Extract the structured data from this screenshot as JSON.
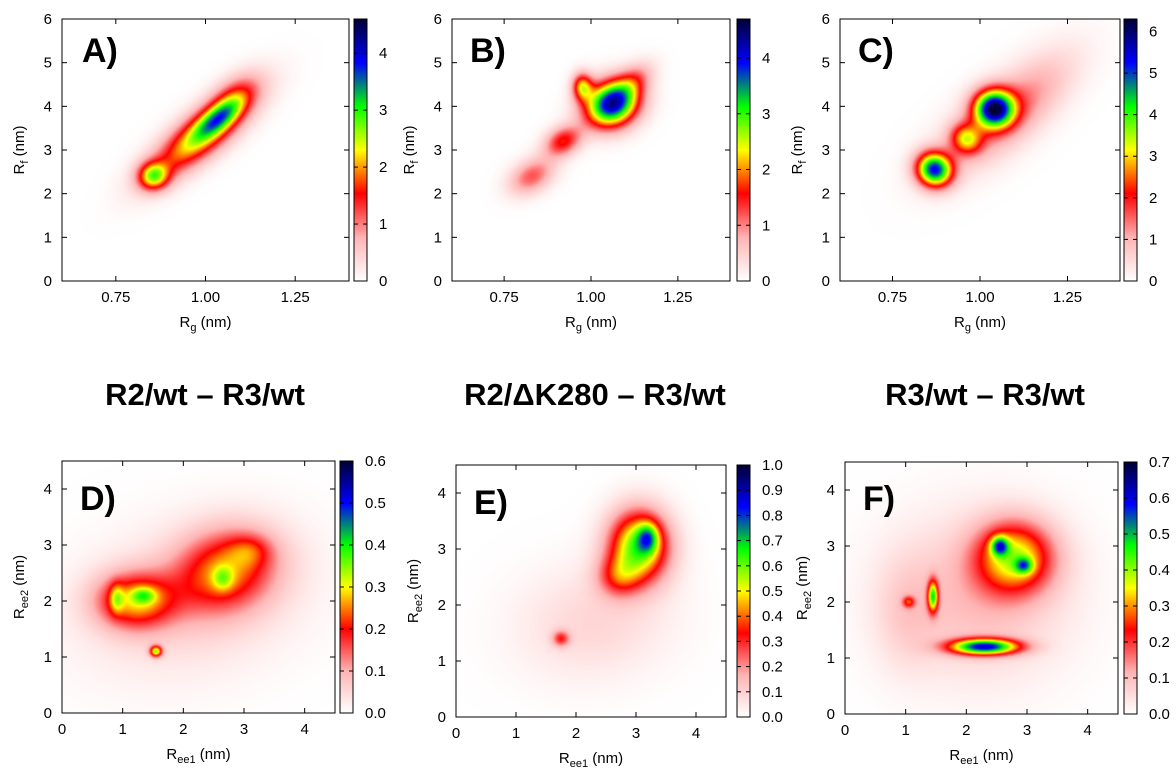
{
  "colorscale": [
    "#ffffff",
    "#ffb3b3",
    "#ff0000",
    "#ffff00",
    "#00ff00",
    "#0000ff",
    "#000033"
  ],
  "row_titles": [
    "R2/wt – R3/wt",
    "R2/ΔK280 – R3/wt",
    "R3/wt – R3/wt"
  ],
  "chart_data": [
    {
      "type": "heatmap",
      "panel": "A)",
      "xlabel": "R",
      "xlabel_sub": "g",
      "xlabel_unit": " (nm)",
      "ylabel": "R",
      "ylabel_sub": "f",
      "ylabel_unit": " (nm)",
      "xlim": [
        0.6,
        1.4
      ],
      "ylim": [
        0,
        6
      ],
      "xticks": [
        0.75,
        1.0,
        1.25
      ],
      "xtick_labels": [
        "0.75",
        "1.00",
        "1.25"
      ],
      "yticks": [
        0,
        1,
        2,
        3,
        4,
        5,
        6
      ],
      "ytick_labels": [
        "0",
        "1",
        "2",
        "3",
        "4",
        "5",
        "6"
      ],
      "colorbar_range": [
        0,
        4.6
      ],
      "colorbar_ticks": [
        0,
        1,
        2,
        3,
        4
      ],
      "colorbar_labels": [
        "0",
        "1",
        "2",
        "3",
        "4"
      ],
      "blobs": [
        {
          "x": 0.99,
          "y": 3.35,
          "sx": 0.125,
          "sy": 0.32,
          "rot": 0.74,
          "amp": 2.4
        },
        {
          "x": 1.04,
          "y": 3.75,
          "sx": 0.06,
          "sy": 0.18,
          "rot": 0.74,
          "amp": 1.6
        },
        {
          "x": 0.855,
          "y": 2.4,
          "sx": 0.03,
          "sy": 0.22,
          "rot": 0.5,
          "amp": 2.1
        },
        {
          "x": 1.08,
          "y": 4.3,
          "sx": 0.06,
          "sy": 0.25,
          "rot": 0.8,
          "amp": 0.7
        }
      ]
    },
    {
      "type": "heatmap",
      "panel": "B)",
      "xlabel": "R",
      "xlabel_sub": "g",
      "xlabel_unit": " (nm)",
      "ylabel": "R",
      "ylabel_sub": "f",
      "ylabel_unit": " (nm)",
      "xlim": [
        0.6,
        1.4
      ],
      "ylim": [
        0,
        6
      ],
      "xticks": [
        0.75,
        1.0,
        1.25
      ],
      "xtick_labels": [
        "0.75",
        "1.00",
        "1.25"
      ],
      "yticks": [
        0,
        1,
        2,
        3,
        4,
        5,
        6
      ],
      "ytick_labels": [
        "0",
        "1",
        "2",
        "3",
        "4",
        "5",
        "6"
      ],
      "colorbar_range": [
        0,
        4.7
      ],
      "colorbar_ticks": [
        0,
        1,
        2,
        3,
        4
      ],
      "colorbar_labels": [
        "0",
        "1",
        "2",
        "3",
        "4"
      ],
      "blobs": [
        {
          "x": 1.06,
          "y": 4.05,
          "sx": 0.055,
          "sy": 0.35,
          "rot": 0.55,
          "amp": 4.2
        },
        {
          "x": 0.975,
          "y": 4.45,
          "sx": 0.02,
          "sy": 0.22,
          "rot": 0.0,
          "amp": 2.0
        },
        {
          "x": 0.92,
          "y": 3.2,
          "sx": 0.04,
          "sy": 0.22,
          "rot": 0.6,
          "amp": 1.6
        },
        {
          "x": 0.83,
          "y": 2.4,
          "sx": 0.05,
          "sy": 0.25,
          "rot": 0.6,
          "amp": 1.2
        },
        {
          "x": 1.12,
          "y": 4.55,
          "sx": 0.05,
          "sy": 0.22,
          "rot": 0.8,
          "amp": 1.0
        }
      ]
    },
    {
      "type": "heatmap",
      "panel": "C)",
      "xlabel": "R",
      "xlabel_sub": "g",
      "xlabel_unit": " (nm)",
      "ylabel": "R",
      "ylabel_sub": "f",
      "ylabel_unit": " (nm)",
      "xlim": [
        0.6,
        1.4
      ],
      "ylim": [
        0,
        6
      ],
      "xticks": [
        0.75,
        1.0,
        1.25
      ],
      "xtick_labels": [
        "0.75",
        "1.00",
        "1.25"
      ],
      "yticks": [
        0,
        1,
        2,
        3,
        4,
        5,
        6
      ],
      "ytick_labels": [
        "0",
        "1",
        "2",
        "3",
        "4",
        "5",
        "6"
      ],
      "colorbar_range": [
        0,
        6.3
      ],
      "colorbar_ticks": [
        0,
        1,
        2,
        3,
        4,
        5,
        6
      ],
      "colorbar_labels": [
        "0",
        "1",
        "2",
        "3",
        "4",
        "5",
        "6"
      ],
      "blobs": [
        {
          "x": 1.04,
          "y": 3.95,
          "sx": 0.04,
          "sy": 0.3,
          "rot": 0.4,
          "amp": 5.3
        },
        {
          "x": 0.87,
          "y": 2.55,
          "sx": 0.035,
          "sy": 0.28,
          "rot": 0.6,
          "amp": 5.0
        },
        {
          "x": 0.96,
          "y": 3.25,
          "sx": 0.03,
          "sy": 0.25,
          "rot": 0.65,
          "amp": 2.4
        },
        {
          "x": 1.12,
          "y": 4.1,
          "sx": 0.14,
          "sy": 0.45,
          "rot": 0.8,
          "amp": 1.1
        },
        {
          "x": 1.0,
          "y": 3.4,
          "sx": 0.14,
          "sy": 0.5,
          "rot": 0.75,
          "amp": 0.6
        }
      ]
    },
    {
      "type": "heatmap",
      "panel": "D)",
      "xlabel": "R",
      "xlabel_sub": "ee1",
      "xlabel_unit": " (nm)",
      "ylabel": "R",
      "ylabel_sub": "ee2",
      "ylabel_unit": " (nm)",
      "xlim": [
        0,
        4.5
      ],
      "ylim": [
        0,
        4.5
      ],
      "xticks": [
        0,
        1,
        2,
        3,
        4
      ],
      "xtick_labels": [
        "0",
        "1",
        "2",
        "3",
        "4"
      ],
      "yticks": [
        0,
        1,
        2,
        3,
        4
      ],
      "ytick_labels": [
        "0",
        "1",
        "2",
        "3",
        "4"
      ],
      "colorbar_range": [
        0,
        0.6
      ],
      "colorbar_ticks": [
        0,
        0.1,
        0.2,
        0.3,
        0.4,
        0.5,
        0.6
      ],
      "colorbar_labels": [
        "0.0",
        "0.1",
        "0.2",
        "0.3",
        "0.4",
        "0.5",
        "0.6"
      ],
      "blobs": [
        {
          "x": 2.7,
          "y": 2.55,
          "sx": 0.6,
          "sy": 0.5,
          "rot": 0.4,
          "amp": 0.22
        },
        {
          "x": 1.2,
          "y": 2.0,
          "sx": 0.45,
          "sy": 0.35,
          "rot": 0.0,
          "amp": 0.24
        },
        {
          "x": 1.35,
          "y": 2.1,
          "sx": 0.14,
          "sy": 0.1,
          "rot": 0.0,
          "amp": 0.12
        },
        {
          "x": 0.9,
          "y": 2.05,
          "sx": 0.08,
          "sy": 0.18,
          "rot": 0.0,
          "amp": 0.12
        },
        {
          "x": 2.65,
          "y": 2.4,
          "sx": 0.12,
          "sy": 0.15,
          "rot": 0.0,
          "amp": 0.1
        },
        {
          "x": 3.1,
          "y": 2.9,
          "sx": 0.25,
          "sy": 0.2,
          "rot": 0.0,
          "amp": 0.08
        },
        {
          "x": 1.55,
          "y": 1.1,
          "sx": 0.07,
          "sy": 0.07,
          "rot": 0.0,
          "amp": 0.3
        },
        {
          "x": 2.1,
          "y": 2.0,
          "sx": 1.3,
          "sy": 0.9,
          "rot": 0.3,
          "amp": 0.06
        }
      ]
    },
    {
      "type": "heatmap",
      "panel": "E)",
      "xlabel": "R",
      "xlabel_sub": "ee1",
      "xlabel_unit": " (nm)",
      "ylabel": "R",
      "ylabel_sub": "ee2",
      "ylabel_unit": " (nm)",
      "xlim": [
        0,
        4.5
      ],
      "ylim": [
        0,
        4.5
      ],
      "xticks": [
        0,
        1,
        2,
        3,
        4
      ],
      "xtick_labels": [
        "0",
        "1",
        "2",
        "3",
        "4"
      ],
      "yticks": [
        0,
        1,
        2,
        3,
        4
      ],
      "ytick_labels": [
        "0",
        "1",
        "2",
        "3",
        "4"
      ],
      "colorbar_range": [
        0,
        1.0
      ],
      "colorbar_ticks": [
        0,
        0.1,
        0.2,
        0.3,
        0.4,
        0.5,
        0.6,
        0.7,
        0.8,
        0.9,
        1.0
      ],
      "colorbar_labels": [
        "0.0",
        "0.1",
        "0.2",
        "0.3",
        "0.4",
        "0.5",
        "0.6",
        "0.7",
        "0.8",
        "0.9",
        "1.0"
      ],
      "blobs": [
        {
          "x": 3.05,
          "y": 3.05,
          "sx": 0.35,
          "sy": 0.45,
          "rot": 0.0,
          "amp": 0.62
        },
        {
          "x": 3.2,
          "y": 3.2,
          "sx": 0.12,
          "sy": 0.18,
          "rot": 0.0,
          "amp": 0.3
        },
        {
          "x": 2.7,
          "y": 2.5,
          "sx": 0.25,
          "sy": 0.25,
          "rot": 0.0,
          "amp": 0.22
        },
        {
          "x": 1.75,
          "y": 1.4,
          "sx": 0.1,
          "sy": 0.1,
          "rot": 0.0,
          "amp": 0.25
        },
        {
          "x": 2.3,
          "y": 1.7,
          "sx": 0.9,
          "sy": 0.7,
          "rot": 0.2,
          "amp": 0.09
        }
      ]
    },
    {
      "type": "heatmap",
      "panel": "F)",
      "xlabel": "R",
      "xlabel_sub": "ee1",
      "xlabel_unit": " (nm)",
      "ylabel": "R",
      "ylabel_sub": "ee2",
      "ylabel_unit": " (nm)",
      "xlim": [
        0,
        4.5
      ],
      "ylim": [
        0,
        4.5
      ],
      "xticks": [
        0,
        1,
        2,
        3,
        4
      ],
      "xtick_labels": [
        "0",
        "1",
        "2",
        "3",
        "4"
      ],
      "yticks": [
        0,
        1,
        2,
        3,
        4
      ],
      "ytick_labels": [
        "0",
        "1",
        "2",
        "3",
        "4"
      ],
      "colorbar_range": [
        0,
        0.7
      ],
      "colorbar_ticks": [
        0,
        0.1,
        0.2,
        0.3,
        0.4,
        0.5,
        0.6,
        0.7
      ],
      "colorbar_labels": [
        "0.0",
        "0.1",
        "0.2",
        "0.3",
        "0.4",
        "0.5",
        "0.6",
        "0.7"
      ],
      "blobs": [
        {
          "x": 2.8,
          "y": 2.8,
          "sx": 0.45,
          "sy": 0.45,
          "rot": 0.0,
          "amp": 0.33
        },
        {
          "x": 2.55,
          "y": 3.0,
          "sx": 0.1,
          "sy": 0.12,
          "rot": 0.0,
          "amp": 0.3
        },
        {
          "x": 2.95,
          "y": 2.65,
          "sx": 0.1,
          "sy": 0.1,
          "rot": 0.0,
          "amp": 0.22
        },
        {
          "x": 2.3,
          "y": 1.2,
          "sx": 0.4,
          "sy": 0.1,
          "rot": 0.0,
          "amp": 0.55
        },
        {
          "x": 1.45,
          "y": 2.1,
          "sx": 0.06,
          "sy": 0.2,
          "rot": 0.0,
          "amp": 0.38
        },
        {
          "x": 1.05,
          "y": 2.0,
          "sx": 0.07,
          "sy": 0.07,
          "rot": 0.0,
          "amp": 0.18
        },
        {
          "x": 2.2,
          "y": 2.1,
          "sx": 1.0,
          "sy": 1.0,
          "rot": 0.0,
          "amp": 0.1
        },
        {
          "x": 1.0,
          "y": 1.8,
          "sx": 0.35,
          "sy": 0.7,
          "rot": 0.0,
          "amp": 0.05
        }
      ]
    }
  ]
}
